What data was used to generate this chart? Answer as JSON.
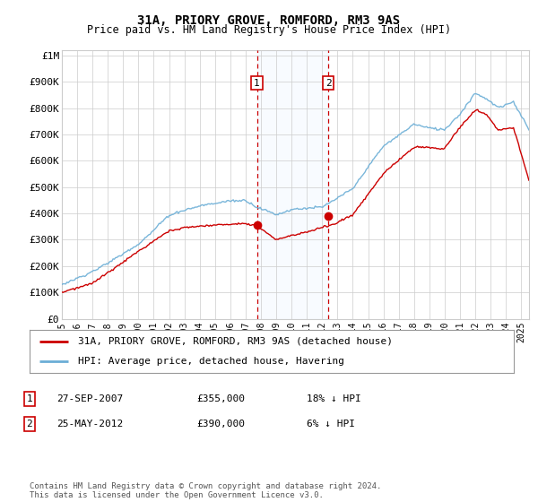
{
  "title": "31A, PRIORY GROVE, ROMFORD, RM3 9AS",
  "subtitle": "Price paid vs. HM Land Registry's House Price Index (HPI)",
  "ylabel_ticks": [
    "£0",
    "£100K",
    "£200K",
    "£300K",
    "£400K",
    "£500K",
    "£600K",
    "£700K",
    "£800K",
    "£900K",
    "£1M"
  ],
  "ytick_values": [
    0,
    100000,
    200000,
    300000,
    400000,
    500000,
    600000,
    700000,
    800000,
    900000,
    1000000
  ],
  "ylim": [
    0,
    1020000
  ],
  "xlim_start": 1995.0,
  "xlim_end": 2025.5,
  "hpi_color": "#6baed6",
  "price_color": "#cc0000",
  "transaction1_date": 2007.74,
  "transaction1_price": 355000,
  "transaction2_date": 2012.4,
  "transaction2_price": 390000,
  "legend_line1": "31A, PRIORY GROVE, ROMFORD, RM3 9AS (detached house)",
  "legend_line2": "HPI: Average price, detached house, Havering",
  "table_rows": [
    {
      "num": "1",
      "date": "27-SEP-2007",
      "price": "£355,000",
      "hpi": "18% ↓ HPI"
    },
    {
      "num": "2",
      "date": "25-MAY-2012",
      "price": "£390,000",
      "hpi": "6% ↓ HPI"
    }
  ],
  "footnote": "Contains HM Land Registry data © Crown copyright and database right 2024.\nThis data is licensed under the Open Government Licence v3.0.",
  "background_color": "#ffffff",
  "grid_color": "#cccccc",
  "shade_color": "#ddeeff"
}
